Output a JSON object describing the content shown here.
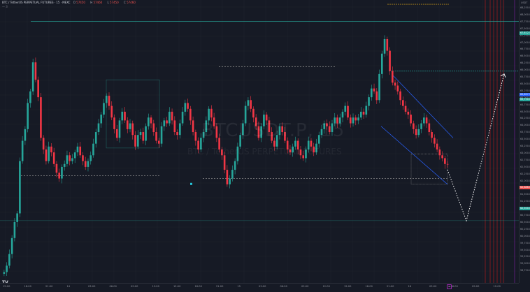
{
  "header": {
    "symbol": "BTC / TetherUS PERPETUAL FUTURES · 15 · MEXC",
    "open": "57450",
    "high": "57460",
    "low": "57450",
    "close": "57460",
    "sub": "— 3"
  },
  "watermark": {
    "main": "BTCUSDT.P, 15",
    "sub": "BTC / TetherUS PERPETUAL FUTURES"
  },
  "price_axis": {
    "unit": "USDT",
    "labels": [
      "68,250.0",
      "68,000.0",
      "67,750.0",
      "67,500.0",
      "67,250.0",
      "67,000.0",
      "66,750.0",
      "66,500.0",
      "66,250.0",
      "66,000.0",
      "65,750.0",
      "65,500.0",
      "65,250.0",
      "65,000.0",
      "64,750.0",
      "64,500.0",
      "64,250.0",
      "64,000.0",
      "63,750.0",
      "63,500.0",
      "63,250.0",
      "63,000.0",
      "62,750.0",
      "62,500.0",
      "62,250.0",
      "62,000.0",
      "61,750.0",
      "61,500.0",
      "61,250.0",
      "61,000.0",
      "60,750.0",
      "60,500.0",
      "60,250.0",
      "60,000.0",
      "59,750.0",
      "59,500.0",
      "59,250.0",
      "59,000.0",
      "58,750.0"
    ],
    "tags": [
      {
        "text": "67,612.5",
        "color": "#26a69a"
      },
      {
        "text": "65,897.5",
        "color": "#2962ff"
      },
      {
        "text": "65,750.0",
        "color": "#26a69a"
      },
      {
        "text": "62,686.0",
        "color": "#ef5350"
      },
      {
        "text": "62,500.0",
        "color": "#26a69a"
      }
    ]
  },
  "time_axis": {
    "labels": [
      "15:00",
      "18:00",
      "21:00",
      "14",
      "03:00",
      "06:00",
      "09:00",
      "12:00",
      "15:00",
      "18:00",
      "21:00",
      "15",
      "03:00",
      "06:00",
      "09:00",
      "12:00",
      "15:00",
      "18:00",
      "21:00",
      "16",
      "03:00",
      "06:00",
      "09:00",
      "12:00"
    ]
  },
  "colors": {
    "bull": "#26a69a",
    "bear": "#f23645",
    "grid": "#1e222d",
    "dotted_projection": "#ffffff",
    "channel": "#2962ff"
  },
  "chart_data": {
    "type": "candlestick",
    "symbol": "BTCUSDT.P",
    "interval": "15",
    "ylim": [
      58750,
      68250
    ],
    "candles_close": [
      58980,
      59200,
      59600,
      60150,
      60700,
      61000,
      62800,
      63500,
      63900,
      64800,
      65200,
      66200,
      65600,
      65000,
      63600,
      63200,
      62800,
      63300,
      63100,
      62700,
      62400,
      62200,
      62600,
      62700,
      63000,
      62800,
      62900,
      63100,
      63300,
      63000,
      62800,
      62600,
      62800,
      63000,
      63400,
      63800,
      64100,
      64400,
      64800,
      65050,
      64700,
      64300,
      63900,
      63600,
      64200,
      64500,
      64200,
      63900,
      64100,
      63700,
      63300,
      63700,
      63800,
      63500,
      64000,
      64300,
      64100,
      63800,
      63500,
      63400,
      64000,
      64200,
      64100,
      64500,
      64200,
      63800,
      63700,
      64100,
      64500,
      64800,
      64600,
      64200,
      63800,
      63500,
      63200,
      63600,
      63800,
      64200,
      64600,
      64300,
      64000,
      63600,
      63200,
      63000,
      62500,
      62000,
      62200,
      62500,
      62800,
      63300,
      63700,
      64100,
      64700,
      64900,
      64600,
      64300,
      64000,
      63600,
      64000,
      64400,
      64200,
      63800,
      63500,
      63300,
      63700,
      64000,
      63800,
      63500,
      63200,
      63100,
      63300,
      63500,
      63200,
      63000,
      62900,
      63200,
      63500,
      63300,
      63100,
      63400,
      63700,
      63900,
      64100,
      64000,
      63800,
      64100,
      64300,
      64100,
      64300,
      64500,
      64700,
      64300,
      64100,
      64300,
      64200,
      64300,
      64500,
      64400,
      64700,
      65000,
      65300,
      65200,
      64900,
      65800,
      66500,
      67000,
      66600,
      65900,
      65500,
      65400,
      65200,
      64900,
      64700,
      64500,
      64400,
      64100,
      63900,
      63700,
      63900,
      64100,
      64300,
      64100,
      63800,
      63600,
      63400,
      63200,
      63000,
      62900,
      62700,
      62686
    ],
    "levels": [
      67612.5,
      65897.5,
      65750.0,
      62500.0
    ],
    "projection": [
      {
        "label": "low",
        "value": 60750
      },
      {
        "label": "high",
        "value": 65800
      }
    ]
  }
}
